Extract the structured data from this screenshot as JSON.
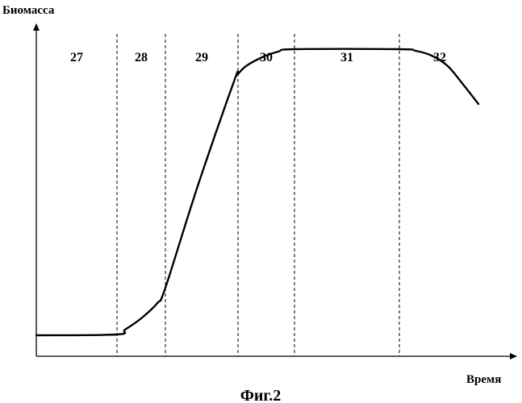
{
  "chart_data": {
    "type": "line",
    "ylabel": "Биомасса",
    "xlabel": "Время",
    "caption": "Фиг.2",
    "grid": false,
    "phases": [
      {
        "label": "27",
        "x_start": 0,
        "x_end": 100
      },
      {
        "label": "28",
        "x_start": 100,
        "x_end": 160
      },
      {
        "label": "29",
        "x_start": 160,
        "x_end": 250
      },
      {
        "label": "30",
        "x_start": 250,
        "x_end": 320
      },
      {
        "label": "31",
        "x_start": 320,
        "x_end": 450
      },
      {
        "label": "32",
        "x_start": 450,
        "x_end": 550
      }
    ],
    "phase_boundaries": [
      100,
      160,
      250,
      320,
      450
    ],
    "xlim": [
      0,
      595
    ],
    "ylim": [
      0,
      410
    ],
    "series": [
      {
        "x": [
          0,
          100,
          110,
          130,
          150,
          160,
          200,
          245,
          250,
          260,
          280,
          300,
          320,
          450,
          470,
          490,
          510,
          530,
          548
        ],
        "y": [
          26,
          27,
          33,
          47,
          66,
          85,
          211,
          341,
          350,
          360,
          371,
          378,
          381,
          381,
          379,
          373,
          360,
          336,
          313
        ]
      }
    ]
  }
}
